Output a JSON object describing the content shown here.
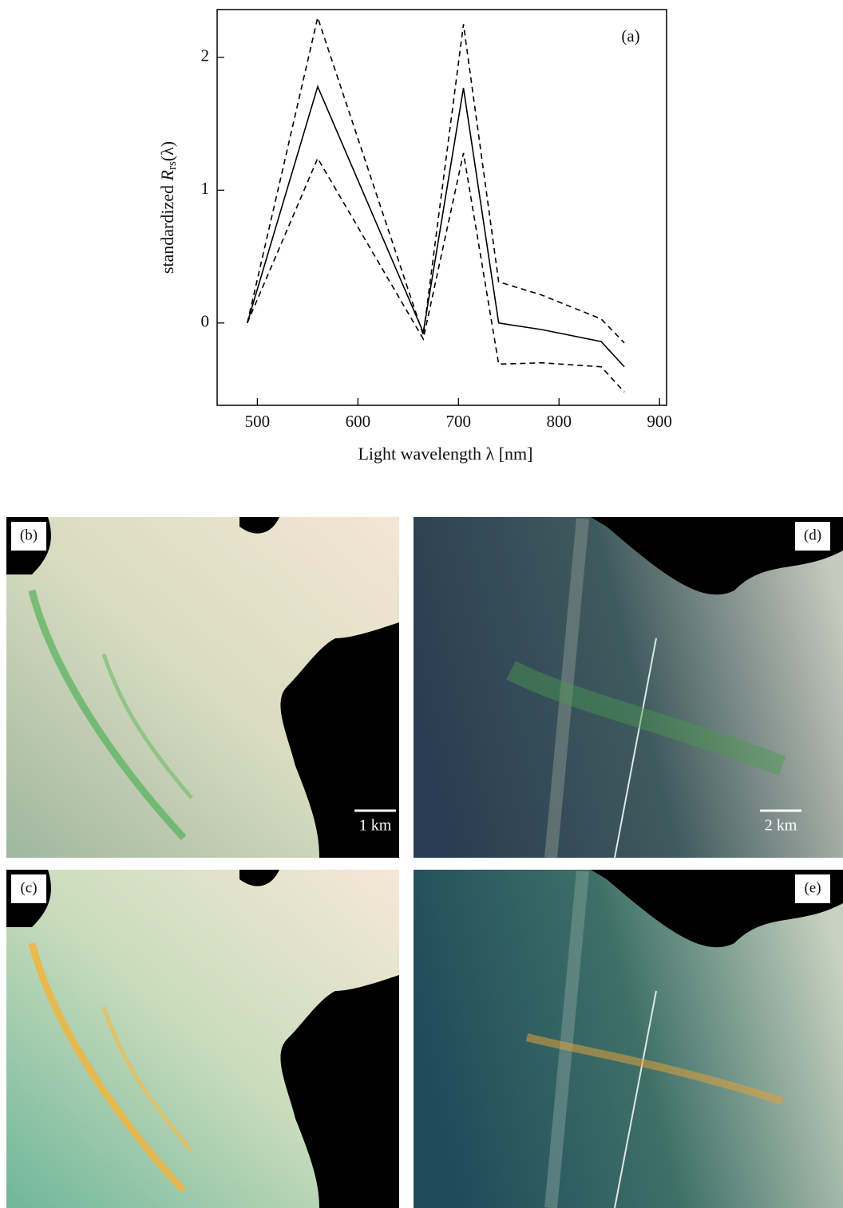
{
  "chart_data": {
    "type": "line",
    "annotation": "(a)",
    "x_label": "Light wavelength  λ [nm]",
    "y_label": {
      "prefix": "standardized ",
      "symbol": "R",
      "subscript": "rs",
      "suffix": "(λ)"
    },
    "x": [
      490,
      560,
      665,
      705,
      740,
      783,
      842,
      865
    ],
    "series": [
      {
        "color": "#000000",
        "style": "solid",
        "values": [
          0,
          1.78,
          -0.07,
          1.77,
          0.0,
          -0.05,
          -0.14,
          -0.33
        ]
      },
      {
        "color": "#000000",
        "style": "dashed",
        "values": [
          0,
          2.3,
          -0.09,
          2.25,
          0.31,
          0.21,
          0.03,
          -0.15
        ]
      },
      {
        "color": "#000000",
        "style": "dashed",
        "values": [
          0,
          1.24,
          -0.12,
          1.28,
          -0.31,
          -0.3,
          -0.33,
          -0.52
        ]
      }
    ],
    "xlim": [
      460,
      907
    ],
    "ylim": [
      -0.62,
      2.36
    ],
    "xticks": [
      500,
      600,
      700,
      800,
      900
    ],
    "yticks": [
      0,
      1,
      2
    ],
    "grid": false
  },
  "panels": [
    {
      "label": "(b)",
      "scale_bar": "1 km"
    },
    {
      "label": "(d)",
      "scale_bar": "2 km"
    },
    {
      "label": "(c)"
    },
    {
      "label": "(e)"
    }
  ]
}
